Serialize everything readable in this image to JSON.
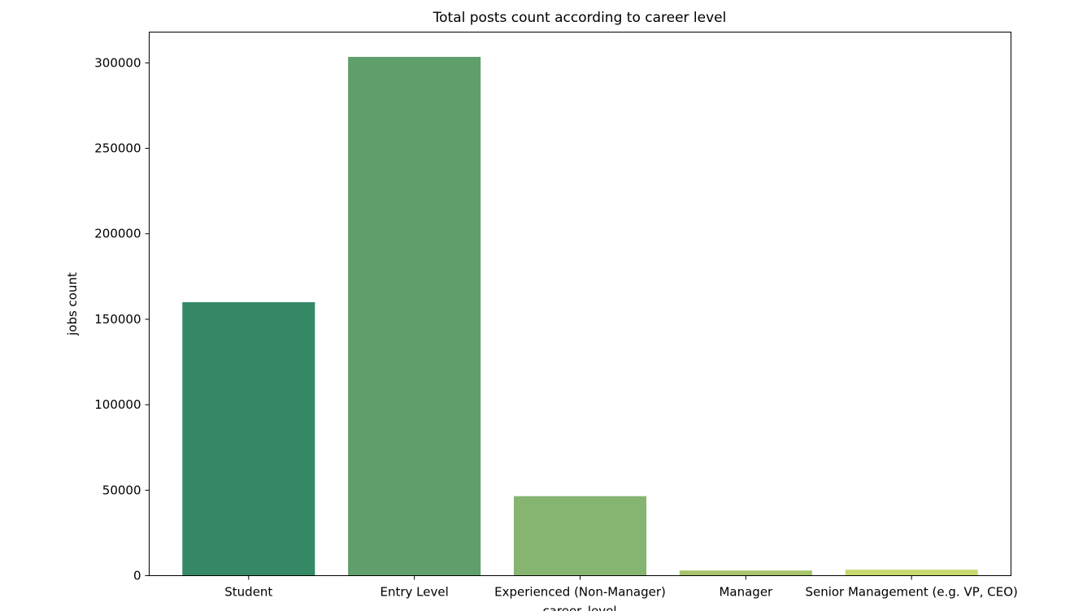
{
  "chart_data": {
    "type": "bar",
    "title": "Total posts count according to career level",
    "xlabel": "career_level",
    "ylabel": "jobs count",
    "categories": [
      "Student",
      "Entry Level",
      "Experienced (Non-Manager)",
      "Manager",
      "Senior Management (e.g. VP, CEO)"
    ],
    "values": [
      160000,
      303500,
      46500,
      3000,
      3500
    ],
    "colors": [
      "#358966",
      "#609f6c",
      "#86b471",
      "#a7c46b",
      "#c9d86d"
    ],
    "ylim": [
      0,
      318000
    ],
    "yticks": [
      0,
      50000,
      100000,
      150000,
      200000,
      250000,
      300000
    ],
    "ytick_labels": [
      "0",
      "50000",
      "100000",
      "150000",
      "200000",
      "250000",
      "300000"
    ],
    "grid": false,
    "legend": "none"
  }
}
